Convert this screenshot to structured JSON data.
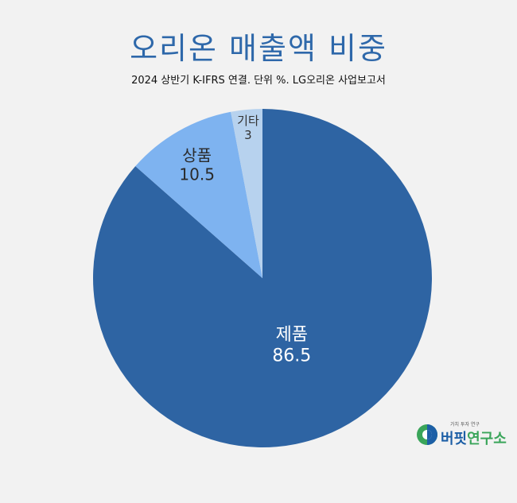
{
  "header": {
    "title": "오리온 매출액 비중",
    "subtitle": "2024 상반기 K-IFRS 연결. 단위 %. LG오리온 사업보고서"
  },
  "chart_data": {
    "type": "pie",
    "title": "오리온 매출액 비중",
    "subtitle": "2024 상반기 K-IFRS 연결. 단위 %. LG오리온 사업보고서",
    "start_angle_deg": 0,
    "direction": "clockwise",
    "slices": [
      {
        "label": "제품",
        "value": 86.5,
        "value_text": "86.5",
        "color": "#2e64a3"
      },
      {
        "label": "상품",
        "value": 10.5,
        "value_text": "10.5",
        "color": "#7eb3f0"
      },
      {
        "label": "기타",
        "value": 3,
        "value_text": "3",
        "color": "#b7d2ee"
      }
    ]
  },
  "logo": {
    "tagline": "가치 투자 연구",
    "name_part1": "버핏",
    "name_part2": "연구소",
    "colors": {
      "blue": "#1d5fa6",
      "green": "#3aa55a"
    }
  }
}
